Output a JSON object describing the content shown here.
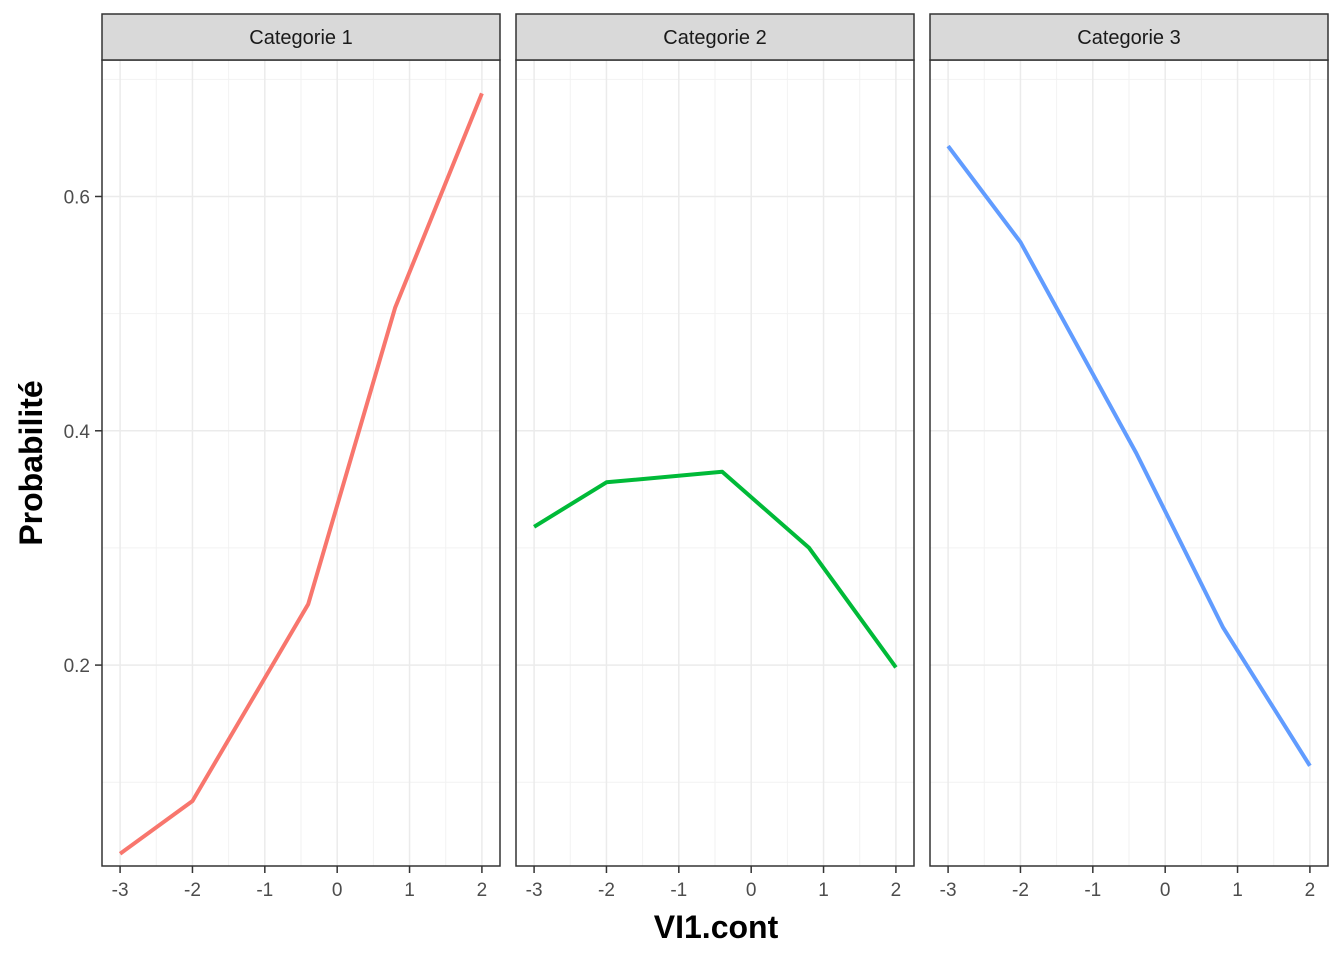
{
  "chart_data": {
    "type": "line",
    "xlabel": "VI1.cont",
    "ylabel": "Probabilité",
    "xlim": [
      -3.25,
      2.25
    ],
    "ylim": [
      0.0285,
      0.7165
    ],
    "x_ticks": [
      -3,
      -2,
      -1,
      0,
      1,
      2
    ],
    "x_tick_labels": [
      "-3",
      "-2",
      "-1",
      "0",
      "1",
      "2"
    ],
    "y_ticks": [
      0.2,
      0.4,
      0.6
    ],
    "y_tick_labels": [
      "0.2",
      "0.4",
      "0.6"
    ],
    "grid": true,
    "facets": [
      {
        "label": "Categorie 1",
        "color": "#F8766D",
        "x": [
          -3,
          -2,
          -0.4,
          0.8,
          2
        ],
        "y": [
          0.039,
          0.084,
          0.252,
          0.505,
          0.688
        ]
      },
      {
        "label": "Categorie 2",
        "color": "#00BA38",
        "x": [
          -3,
          -2,
          -0.4,
          0.8,
          2
        ],
        "y": [
          0.318,
          0.356,
          0.365,
          0.3,
          0.198
        ]
      },
      {
        "label": "Categorie 3",
        "color": "#619CFF",
        "x": [
          -3,
          -2,
          -0.4,
          0.8,
          2
        ],
        "y": [
          0.643,
          0.561,
          0.381,
          0.232,
          0.114
        ]
      }
    ]
  }
}
